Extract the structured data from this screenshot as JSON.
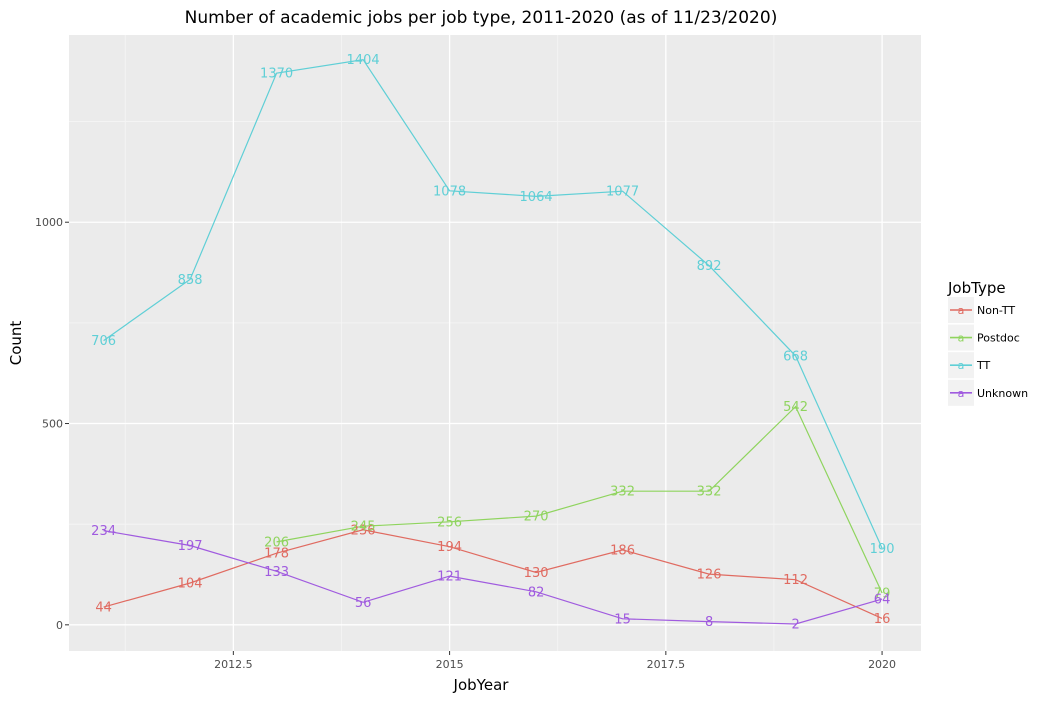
{
  "chart_data": {
    "type": "line",
    "title": "Number of academic jobs per job type, 2011-2020 (as of 11/23/2020)",
    "xlabel": "JobYear",
    "ylabel": "Count",
    "xlim": [
      2010.6,
      2020.45
    ],
    "ylim": [
      -65,
      1465
    ],
    "x_ticks": [
      2012.5,
      2015,
      2017.5,
      2020
    ],
    "x_tick_labels": [
      "2012.5",
      "2015",
      "2017.5",
      "2020"
    ],
    "y_ticks": [
      0,
      500,
      1000
    ],
    "y_tick_labels": [
      "0",
      "500",
      "1000"
    ],
    "grid": true,
    "legend": {
      "title": "JobType",
      "position": "right",
      "key_glyph": "a"
    },
    "series": [
      {
        "name": "Non-TT",
        "color": "#E06B61",
        "x": [
          2011,
          2012,
          2013,
          2014,
          2015,
          2016,
          2017,
          2018,
          2019,
          2020
        ],
        "values": [
          44,
          104,
          178,
          236,
          194,
          130,
          186,
          126,
          112,
          16
        ]
      },
      {
        "name": "Postdoc",
        "color": "#8FD45E",
        "x": [
          2013,
          2014,
          2015,
          2016,
          2017,
          2018,
          2019,
          2020
        ],
        "values": [
          206,
          245,
          256,
          270,
          332,
          332,
          542,
          79
        ]
      },
      {
        "name": "TT",
        "color": "#5FCFD6",
        "x": [
          2011,
          2012,
          2013,
          2014,
          2015,
          2016,
          2017,
          2018,
          2019,
          2020
        ],
        "values": [
          706,
          858,
          1370,
          1404,
          1078,
          1064,
          1077,
          892,
          668,
          190
        ]
      },
      {
        "name": "Unknown",
        "color": "#A05BDF",
        "x": [
          2011,
          2012,
          2013,
          2014,
          2015,
          2016,
          2017,
          2018,
          2019,
          2020
        ],
        "values": [
          234,
          197,
          133,
          56,
          121,
          82,
          15,
          8,
          2,
          64
        ]
      }
    ]
  }
}
